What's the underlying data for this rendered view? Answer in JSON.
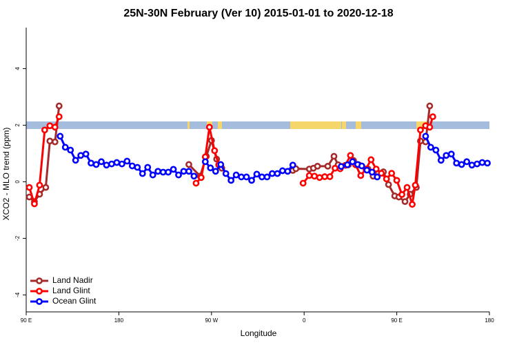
{
  "chart_data": {
    "type": "line",
    "title": "25N-30N February (Ver 10)   2015-01-01 to 2020-12-18",
    "x_label": "Longitude",
    "y_label": "XCO2 - MLO trend (ppm)",
    "xlim": [
      90,
      540
    ],
    "ylim": [
      -4.6,
      5.45
    ],
    "xticks": [
      {
        "value": 90,
        "label": "90 E"
      },
      180,
      {
        "value": 270,
        "label": "90 W"
      },
      {
        "value": 360,
        "label": "0"
      },
      {
        "value": 450,
        "label": "90 E"
      },
      {
        "value": 540,
        "label": "180"
      }
    ],
    "yticks": [
      -4,
      -2,
      0,
      2,
      4
    ],
    "legend": "bottomleft",
    "series": [
      {
        "name": "Land Nadir",
        "color": "#a52a2a",
        "x": [
          93,
          98,
          103,
          109,
          113,
          118,
          122,
          null,
          248,
          259,
          265,
          270,
          275,
          280,
          null,
          349,
          352,
          365,
          369,
          373,
          383,
          389,
          393,
          403,
          408,
          413,
          422,
          427,
          432,
          437,
          442,
          448,
          452,
          458,
          463,
          469,
          473,
          478,
          482
        ],
        "values": [
          -0.54,
          -0.7,
          -0.44,
          -0.2,
          1.44,
          1.41,
          2.68,
          null,
          0.61,
          0.2,
          0.9,
          1.46,
          0.8,
          0.48,
          null,
          0.4,
          0.46,
          0.45,
          0.48,
          0.55,
          0.55,
          0.9,
          0.6,
          0.6,
          0.75,
          0.6,
          0.45,
          0.2,
          0.3,
          0.35,
          -0.1,
          -0.5,
          -0.54,
          -0.7,
          -0.44,
          -0.2,
          1.44,
          1.41,
          2.68
        ]
      },
      {
        "name": "Land Glint",
        "color": "#ff0000",
        "x": [
          93,
          98,
          103,
          108,
          113,
          118,
          122,
          null,
          255,
          260,
          264,
          268,
          273,
          277,
          null,
          359,
          365,
          370,
          375,
          380,
          385,
          390,
          395,
          400,
          405,
          410,
          415,
          420,
          425,
          430,
          435,
          440,
          445,
          450,
          455,
          460,
          465,
          468,
          473,
          478,
          482,
          485
        ],
        "values": [
          -0.2,
          -0.78,
          -0.12,
          1.83,
          1.98,
          1.93,
          2.3,
          null,
          -0.05,
          0.15,
          0.88,
          1.93,
          1.1,
          0.6,
          null,
          -0.05,
          0.22,
          0.2,
          0.15,
          0.18,
          0.18,
          0.48,
          0.46,
          0.58,
          0.93,
          0.6,
          0.22,
          0.45,
          0.78,
          0.45,
          0.3,
          0.1,
          0.3,
          0.05,
          -0.45,
          -0.2,
          -0.8,
          -0.12,
          1.83,
          1.98,
          1.93,
          2.3
        ]
      },
      {
        "name": "Ocean Glint",
        "color": "#0000ff",
        "x": [
          123,
          128,
          133,
          138,
          143,
          148,
          153,
          158,
          163,
          168,
          173,
          178,
          183,
          188,
          193,
          198,
          203,
          208,
          213,
          218,
          223,
          228,
          233,
          238,
          243,
          248,
          253,
          null,
          264,
          269,
          274,
          279,
          284,
          289,
          294,
          299,
          304,
          309,
          314,
          319,
          324,
          329,
          334,
          339,
          344,
          349,
          null,
          396,
          402,
          407,
          412,
          416,
          421,
          426,
          431,
          null,
          478,
          483,
          488,
          493,
          498,
          503,
          508,
          513,
          518,
          523,
          528,
          533,
          538
        ],
        "values": [
          1.61,
          1.22,
          1.12,
          0.76,
          0.93,
          0.98,
          0.66,
          0.61,
          0.71,
          0.59,
          0.63,
          0.68,
          0.63,
          0.73,
          0.56,
          0.51,
          0.29,
          0.51,
          0.24,
          0.37,
          0.34,
          0.34,
          0.44,
          0.24,
          0.37,
          0.37,
          0.2,
          null,
          0.71,
          0.49,
          0.37,
          0.61,
          0.29,
          0.05,
          0.24,
          0.17,
          0.17,
          0.05,
          0.27,
          0.17,
          0.17,
          0.29,
          0.29,
          0.39,
          0.37,
          0.59,
          null,
          0.54,
          0.6,
          0.71,
          0.61,
          0.56,
          0.41,
          0.34,
          0.17,
          null,
          1.61,
          1.22,
          1.12,
          0.76,
          0.93,
          0.98,
          0.66,
          0.61,
          0.71,
          0.59,
          0.63,
          0.68,
          0.66
        ]
      }
    ]
  }
}
